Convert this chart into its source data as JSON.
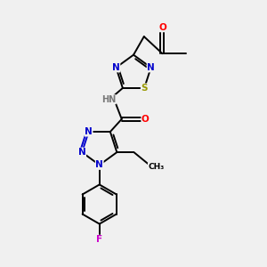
{
  "background_color": "#f0f0f0",
  "bond_color": "#000000",
  "atom_colors": {
    "N": "#0000cc",
    "O": "#ff0000",
    "S": "#999900",
    "F": "#cc00cc",
    "H": "#777777",
    "C": "#000000"
  },
  "figsize": [
    3.0,
    3.0
  ],
  "dpi": 100
}
